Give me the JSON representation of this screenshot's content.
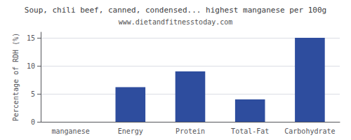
{
  "chart_data": {
    "type": "bar",
    "title": "Soup, chili beef, canned, condensed... highest manganese per 100g",
    "subtitle": "www.dietandfitnesstoday.com",
    "categories": [
      "manganese",
      "Energy",
      "Protein",
      "Total-Fat",
      "Carbohydrate"
    ],
    "values": [
      0,
      6.2,
      9.0,
      4.0,
      15.0
    ],
    "color": "#2e4d9e",
    "ylabel": "Percentage of RDH (%)",
    "ylim": [
      0,
      16
    ],
    "yticks": [
      0,
      5,
      10,
      15
    ],
    "grid": true
  }
}
